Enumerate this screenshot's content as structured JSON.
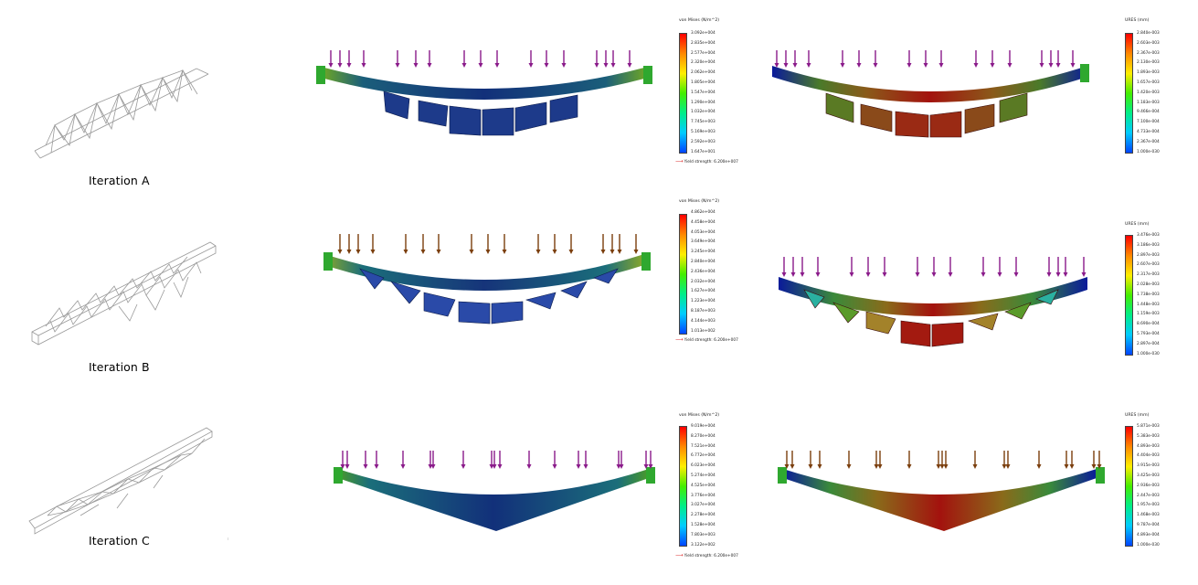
{
  "iterations": [
    {
      "label": "Iteration A",
      "stress": {
        "title": "von Mises (N/m^2)",
        "ticks": [
          "3.092e+004",
          "2.835e+004",
          "2.577e+004",
          "2.320e+004",
          "2.062e+004",
          "1.805e+004",
          "1.547e+004",
          "1.290e+004",
          "1.032e+004",
          "7.745e+003",
          "5.169e+003",
          "2.592e+003",
          "1.647e+001"
        ],
        "yield": "Yield strength: 6.200e+007"
      },
      "disp": {
        "title": "URES (mm)",
        "ticks": [
          "2.840e-003",
          "2.603e-003",
          "2.367e-003",
          "2.130e-003",
          "1.893e-003",
          "1.657e-003",
          "1.420e-003",
          "1.183e-003",
          "9.466e-004",
          "7.100e-004",
          "4.733e-004",
          "2.367e-004",
          "1.000e-030"
        ]
      }
    },
    {
      "label": "Iteration B",
      "stress": {
        "title": "von Mises (N/m^2)",
        "ticks": [
          "4.862e+004",
          "4.458e+004",
          "4.053e+004",
          "3.649e+004",
          "3.245e+004",
          "2.840e+004",
          "2.436e+004",
          "2.032e+004",
          "1.627e+004",
          "1.223e+004",
          "8.187e+003",
          "4.144e+003",
          "1.013e+002"
        ],
        "yield": "Yield strength: 6.200e+007"
      },
      "disp": {
        "title": "URES (mm)",
        "ticks": [
          "3.476e-003",
          "3.186e-003",
          "2.897e-003",
          "2.607e-003",
          "2.317e-003",
          "2.028e-003",
          "1.738e-003",
          "1.448e-003",
          "1.159e-003",
          "8.690e-004",
          "5.793e-004",
          "2.897e-004",
          "1.000e-030"
        ]
      }
    },
    {
      "label": "Iteration C",
      "stress": {
        "title": "von Mises (N/m^2)",
        "ticks": [
          "9.019e+004",
          "8.270e+004",
          "7.521e+004",
          "6.772e+004",
          "6.023e+004",
          "5.274e+004",
          "4.525e+004",
          "3.776e+004",
          "3.027e+004",
          "2.278e+004",
          "1.528e+004",
          "7.803e+003",
          "3.122e+002"
        ],
        "yield": "Yield strength: 6.200e+007"
      },
      "disp": {
        "title": "URES (mm)",
        "ticks": [
          "5.871e-003",
          "5.383e-003",
          "4.893e-003",
          "4.404e-003",
          "3.915e-003",
          "3.425e-003",
          "2.936e-003",
          "2.447e-003",
          "1.957e-003",
          "1.468e-003",
          "9.787e-004",
          "4.893e-004",
          "1.000e-030"
        ]
      }
    }
  ],
  "colors": {
    "arrow_purple": "#8a1a8a",
    "arrow_brown": "#7a3d0c",
    "fixture_green": "#2fa82f",
    "beam_blue": "#0f2f7a",
    "beam_red": "#a3120e"
  },
  "icons": [
    "load-arrow-icon",
    "fixture-icon",
    "yield-arrow-icon"
  ]
}
